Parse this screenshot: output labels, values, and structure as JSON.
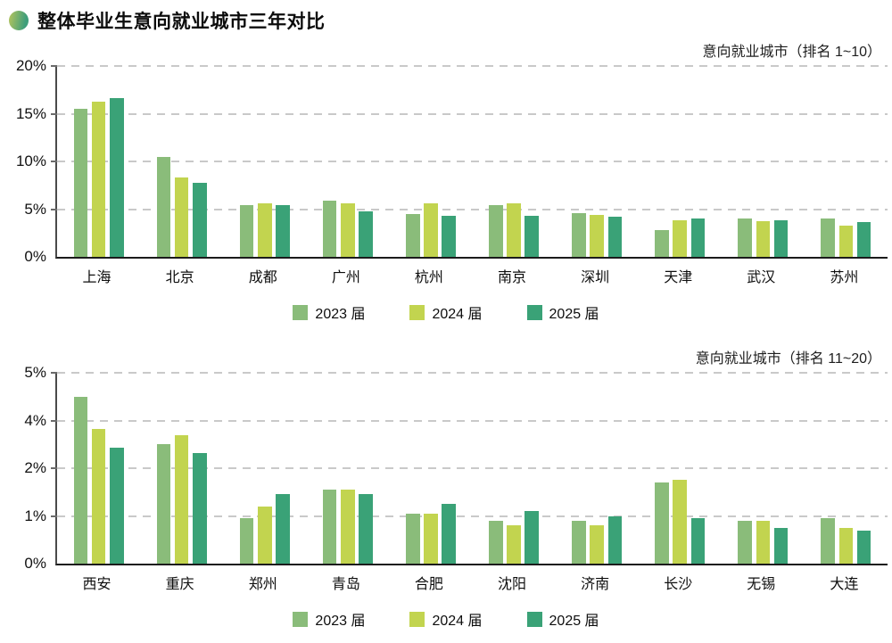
{
  "page": {
    "heading": "整体毕业生意向就业城市三年对比"
  },
  "chart_data": [
    {
      "type": "bar",
      "title": "意向就业城市（排名 1~10）",
      "categories": [
        "上海",
        "北京",
        "成都",
        "广州",
        "杭州",
        "南京",
        "深圳",
        "天津",
        "武汉",
        "苏州"
      ],
      "series": [
        {
          "name": "2023 届",
          "color": "#8abc7a",
          "values": [
            15.5,
            10.5,
            5.4,
            5.9,
            4.5,
            5.4,
            4.6,
            2.8,
            4.0,
            4.0
          ]
        },
        {
          "name": "2024 届",
          "color": "#c2d44f",
          "values": [
            16.3,
            8.3,
            5.6,
            5.6,
            5.6,
            5.6,
            4.4,
            3.8,
            3.7,
            3.3
          ]
        },
        {
          "name": "2025 届",
          "color": "#3aa277",
          "values": [
            16.6,
            7.8,
            5.4,
            4.8,
            4.3,
            4.3,
            4.2,
            4.0,
            3.8,
            3.6
          ]
        }
      ],
      "y_axis": {
        "labels": [
          "0%",
          "5%",
          "10%",
          "15%",
          "20%"
        ],
        "values": [
          0,
          5,
          10,
          15,
          20
        ]
      },
      "ylim": [
        0,
        20
      ],
      "grid": "horizontal-dashed",
      "legend_position": "bottom"
    },
    {
      "type": "bar",
      "title": "意向就业城市（排名 11~20）",
      "categories": [
        "西安",
        "重庆",
        "郑州",
        "青岛",
        "合肥",
        "沈阳",
        "济南",
        "长沙",
        "无锡",
        "大连"
      ],
      "series": [
        {
          "name": "2023 届",
          "color": "#8abc7a",
          "values": [
            4.5,
            3.0,
            0.95,
            1.55,
            1.05,
            0.9,
            0.9,
            1.7,
            0.9,
            0.95
          ]
        },
        {
          "name": "2024 届",
          "color": "#c2d44f",
          "values": [
            3.65,
            3.4,
            1.2,
            1.55,
            1.05,
            0.8,
            0.8,
            1.75,
            0.9,
            0.75
          ]
        },
        {
          "name": "2025 届",
          "color": "#3aa277",
          "values": [
            2.85,
            2.65,
            1.45,
            1.45,
            1.25,
            1.1,
            1.0,
            0.95,
            0.75,
            0.7
          ]
        }
      ],
      "y_axis": {
        "labels": [
          "0%",
          "1%",
          "2%",
          "4%",
          "5%"
        ],
        "values": [
          0,
          1,
          2,
          4,
          5
        ]
      },
      "ylim": [
        0,
        5
      ],
      "grid": "horizontal-dashed",
      "legend_position": "bottom"
    }
  ],
  "style": {
    "series_colors": [
      "#8abc7a",
      "#c2d44f",
      "#3aa277"
    ],
    "title_bullet_gradient": [
      "#aec25e",
      "#3f9e7a"
    ],
    "grid_color": "#c9c9c9",
    "axis_color": "#4a4a4a"
  }
}
